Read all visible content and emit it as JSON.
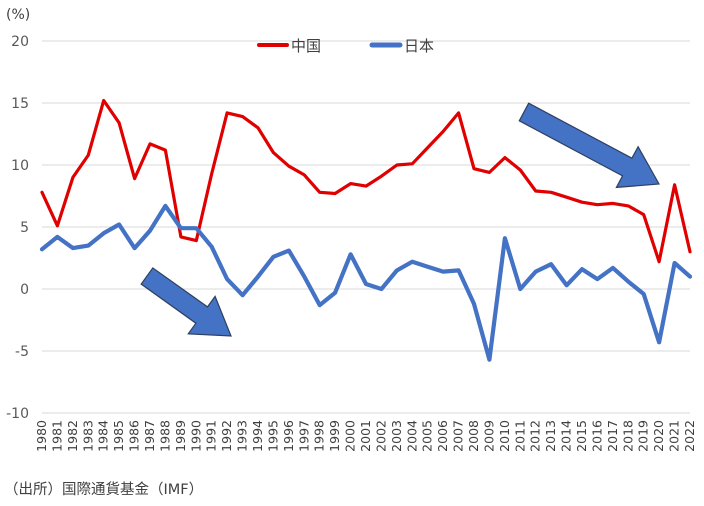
{
  "chart_data": {
    "type": "line",
    "unit_label": "(%)",
    "ylim": [
      -10,
      20
    ],
    "y_ticks": [
      20,
      15,
      10,
      5,
      0,
      -5,
      -10
    ],
    "x": [
      "1980",
      "1981",
      "1982",
      "1983",
      "1984",
      "1985",
      "1986",
      "1987",
      "1988",
      "1989",
      "1990",
      "1991",
      "1992",
      "1993",
      "1994",
      "1995",
      "1996",
      "1997",
      "1998",
      "1999",
      "2000",
      "2001",
      "2002",
      "2003",
      "2004",
      "2005",
      "2006",
      "2007",
      "2008",
      "2009",
      "2010",
      "2011",
      "2012",
      "2013",
      "2014",
      "2015",
      "2016",
      "2017",
      "2018",
      "2019",
      "2020",
      "2021",
      "2022"
    ],
    "series": [
      {
        "name": "中国",
        "color": "#e00000",
        "values": [
          7.8,
          5.1,
          9.0,
          10.8,
          15.2,
          13.4,
          8.9,
          11.7,
          11.2,
          4.2,
          3.9,
          9.3,
          14.2,
          13.9,
          13.0,
          11.0,
          9.9,
          9.2,
          7.8,
          7.7,
          8.5,
          8.3,
          9.1,
          10.0,
          10.1,
          11.4,
          12.7,
          14.2,
          9.7,
          9.4,
          10.6,
          9.6,
          7.9,
          7.8,
          7.4,
          7.0,
          6.8,
          6.9,
          6.7,
          6.0,
          2.2,
          8.4,
          3.0
        ]
      },
      {
        "name": "日本",
        "color": "#4472c4",
        "values": [
          3.2,
          4.2,
          3.3,
          3.5,
          4.5,
          5.2,
          3.3,
          4.7,
          6.7,
          4.9,
          4.9,
          3.4,
          0.8,
          -0.5,
          1.0,
          2.6,
          3.1,
          1.0,
          -1.3,
          -0.3,
          2.8,
          0.4,
          0.0,
          1.5,
          2.2,
          1.8,
          1.4,
          1.5,
          -1.2,
          -5.7,
          4.1,
          0.0,
          1.4,
          2.0,
          0.3,
          1.6,
          0.8,
          1.7,
          0.6,
          -0.4,
          -4.3,
          2.1,
          1.0
        ]
      }
    ],
    "grid": true,
    "legend_position": "top-center"
  },
  "legend": {
    "china": "中国",
    "japan": "日本"
  },
  "source_note": "（出所）国際通貨基金（IMF）",
  "arrow_color": "#4472c4"
}
